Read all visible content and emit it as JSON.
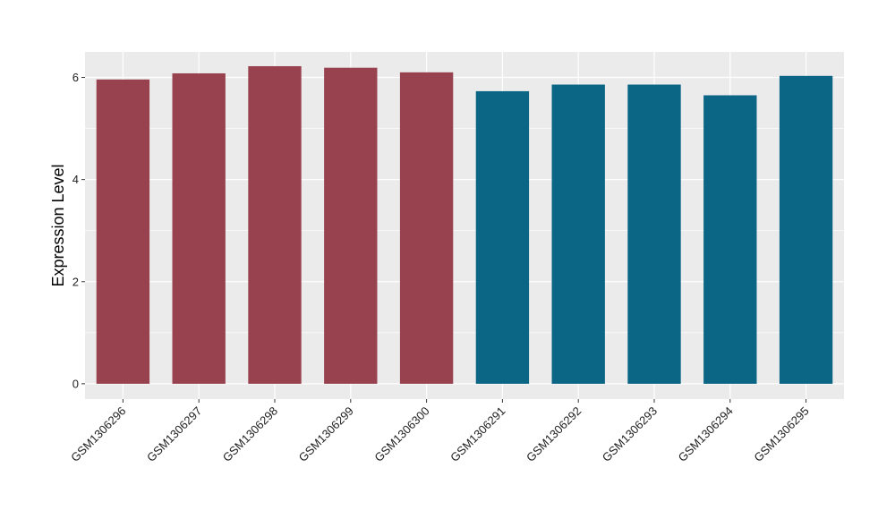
{
  "chart_data": {
    "type": "bar",
    "title": "",
    "xlabel": "",
    "ylabel": "Expression Level",
    "categories": [
      "GSM1306296",
      "GSM1306297",
      "GSM1306298",
      "GSM1306299",
      "GSM1306300",
      "GSM1306291",
      "GSM1306292",
      "GSM1306293",
      "GSM1306294",
      "GSM1306295"
    ],
    "values": [
      5.96,
      6.08,
      6.22,
      6.19,
      6.1,
      5.73,
      5.86,
      5.86,
      5.65,
      6.03
    ],
    "bar_colors": [
      "#99424f",
      "#99424f",
      "#99424f",
      "#99424f",
      "#99424f",
      "#0b6585",
      "#0b6585",
      "#0b6585",
      "#0b6585",
      "#0b6585"
    ],
    "ylim": [
      -0.3,
      6.5
    ],
    "yticks": [
      0,
      2,
      4,
      6
    ],
    "grid": true,
    "panel_background": "#ebebeb",
    "legend": "none"
  }
}
